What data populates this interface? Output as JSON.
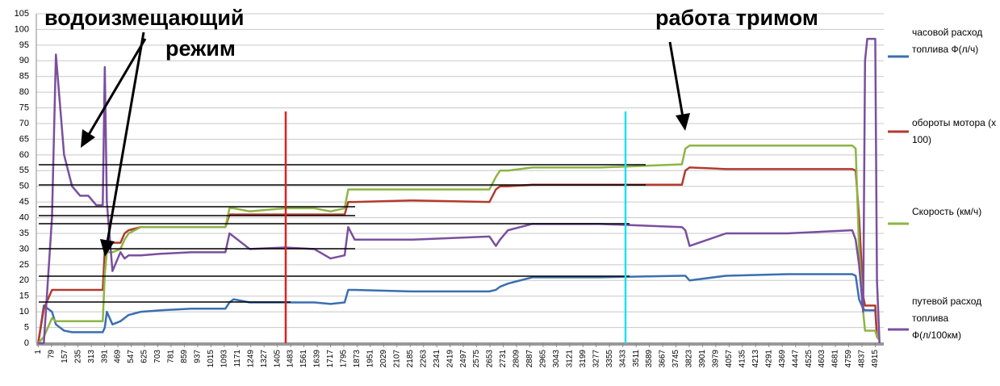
{
  "chart_data": {
    "type": "line",
    "annotations": [
      "водоизмещающий",
      "режим",
      "работа тримом"
    ],
    "x": [
      1,
      34,
      82,
      105,
      153,
      200,
      247,
      295,
      342,
      380,
      392,
      404,
      437,
      484,
      508,
      532,
      603,
      721,
      900,
      1100,
      1124,
      1148,
      1243,
      1450,
      1622,
      1717,
      1800,
      1821,
      1859,
      2200,
      2650,
      2688,
      2712,
      2759,
      2901,
      3300,
      3780,
      3800,
      3825,
      4039,
      4400,
      4780,
      4800,
      4820,
      4844,
      4855,
      4868,
      4915,
      4925,
      4940
    ],
    "series": [
      {
        "name": "часовой расход топлива Ф(л/ч)",
        "color": "#3a6fb0",
        "values": [
          0,
          12,
          10,
          6,
          4,
          3.5,
          3.5,
          3.5,
          3.5,
          3.5,
          5,
          10,
          6,
          7,
          8,
          9,
          10,
          10.5,
          11,
          11,
          13,
          14,
          13,
          13,
          13,
          12.5,
          13,
          17,
          17,
          16.5,
          16.5,
          17,
          18,
          19,
          21,
          21,
          21.5,
          21.5,
          20,
          21.5,
          22,
          22,
          21.5,
          14,
          11,
          10.5,
          10.5,
          10.5,
          2,
          1
        ]
      },
      {
        "name": "обороты мотора (х 100)",
        "color": "#b33a2e",
        "values": [
          0,
          11,
          17,
          17,
          17,
          17,
          17,
          17,
          17,
          17,
          30,
          31,
          32,
          32,
          35,
          36,
          37,
          37,
          37,
          37,
          41,
          41,
          41,
          41,
          41,
          41,
          41,
          45,
          45,
          45.5,
          45,
          49,
          50,
          50,
          50.5,
          50.5,
          50.5,
          55,
          56,
          55.5,
          55.5,
          55.5,
          55,
          40,
          15,
          12,
          12,
          12,
          2,
          1
        ]
      },
      {
        "name": "Скорость (км/ч)",
        "color": "#8db545",
        "values": [
          0,
          2,
          8,
          7,
          7,
          7,
          7,
          7,
          7,
          7,
          22,
          29,
          29,
          30,
          33,
          35,
          37,
          37,
          37,
          37,
          43,
          43,
          42,
          43,
          43,
          42,
          43,
          49,
          49,
          49,
          49,
          53,
          55,
          55,
          56,
          56,
          57,
          62,
          63,
          63,
          63,
          63,
          62,
          30,
          10,
          4,
          4,
          4,
          2,
          1
        ]
      },
      {
        "name": "путевой расход топлива Ф(л/100км)",
        "color": "#7a4f9e",
        "values": [
          0,
          0,
          40,
          92,
          60,
          50,
          47,
          47,
          44,
          44,
          88,
          45,
          23,
          29,
          27,
          28,
          28,
          28.5,
          29,
          29,
          35,
          34,
          30,
          30.5,
          30,
          27,
          28,
          37,
          33,
          33,
          34,
          31,
          33,
          36,
          38,
          38,
          37,
          36,
          31,
          35,
          35,
          36,
          33,
          25,
          10,
          90,
          97,
          97,
          20,
          0
        ]
      }
    ],
    "xlim": [
      -10,
      4965
    ],
    "xticks": [
      1,
      79,
      157,
      235,
      313,
      391,
      469,
      547,
      625,
      703,
      781,
      859,
      937,
      1015,
      1093,
      1171,
      1249,
      1327,
      1405,
      1483,
      1561,
      1639,
      1717,
      1795,
      1873,
      1951,
      2029,
      2107,
      2185,
      2263,
      2341,
      2419,
      2497,
      2575,
      2653,
      2731,
      2809,
      2887,
      2965,
      3043,
      3121,
      3199,
      3277,
      3355,
      3433,
      3511,
      3589,
      3667,
      3745,
      3823,
      3901,
      3979,
      4057,
      4135,
      4213,
      4291,
      4369,
      4447,
      4525,
      4603,
      4681,
      4759,
      4837,
      4915
    ],
    "ylim": [
      0,
      105
    ],
    "yticks": [
      0,
      5,
      10,
      15,
      20,
      25,
      30,
      35,
      40,
      45,
      50,
      55,
      60,
      65,
      70,
      75,
      80,
      85,
      90,
      95,
      100,
      105
    ],
    "grid": true
  }
}
